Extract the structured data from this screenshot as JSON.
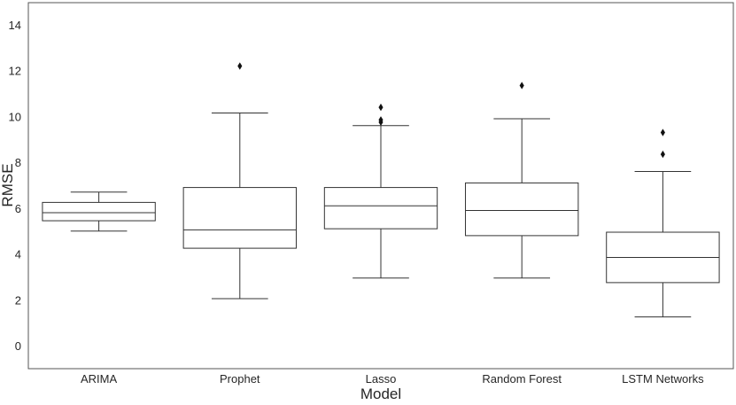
{
  "chart_data": {
    "type": "boxplot",
    "title": "",
    "xlabel": "Model",
    "ylabel": "RMSE",
    "ylim": [
      -1,
      14.8
    ],
    "yticks": [
      0,
      2,
      4,
      6,
      8,
      10,
      12,
      14
    ],
    "grid": false,
    "categories": [
      "ARIMA",
      "Prophet",
      "Lasso",
      "Random Forest",
      "LSTM Networks"
    ],
    "boxes": [
      {
        "name": "ARIMA",
        "whisker_low": 5.0,
        "q1": 5.45,
        "median": 5.8,
        "q3": 6.25,
        "whisker_high": 6.7,
        "outliers": []
      },
      {
        "name": "Prophet",
        "whisker_low": 2.05,
        "q1": 4.25,
        "median": 5.05,
        "q3": 6.9,
        "whisker_high": 10.15,
        "outliers": [
          12.2
        ]
      },
      {
        "name": "Lasso",
        "whisker_low": 2.95,
        "q1": 5.1,
        "median": 6.1,
        "q3": 6.9,
        "whisker_high": 9.6,
        "outliers": [
          9.75,
          9.85,
          10.4
        ]
      },
      {
        "name": "Random Forest",
        "whisker_low": 2.95,
        "q1": 4.8,
        "median": 5.9,
        "q3": 7.1,
        "whisker_high": 9.9,
        "outliers": [
          11.35
        ]
      },
      {
        "name": "LSTM Networks",
        "whisker_low": 1.25,
        "q1": 2.75,
        "median": 3.85,
        "q3": 4.95,
        "whisker_high": 7.6,
        "outliers": [
          8.35,
          9.3
        ]
      }
    ]
  }
}
